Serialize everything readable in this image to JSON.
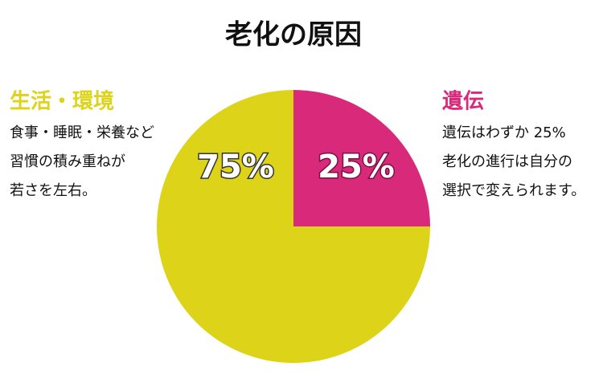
{
  "chart_data": {
    "type": "pie",
    "title": "老化の原因",
    "categories": [
      "遺伝",
      "生活・環境"
    ],
    "values": [
      25,
      75
    ],
    "value_labels": [
      "25%",
      "75%"
    ],
    "colors": [
      "#d9297b",
      "#ddd319"
    ],
    "descriptions": [
      [
        "遺伝はわずか 25%",
        "老化の進行は自分の",
        "選択で変えられます。"
      ],
      [
        "食事・睡眠・栄養など",
        "習慣の積み重ねが",
        "若さを左右。"
      ]
    ]
  }
}
